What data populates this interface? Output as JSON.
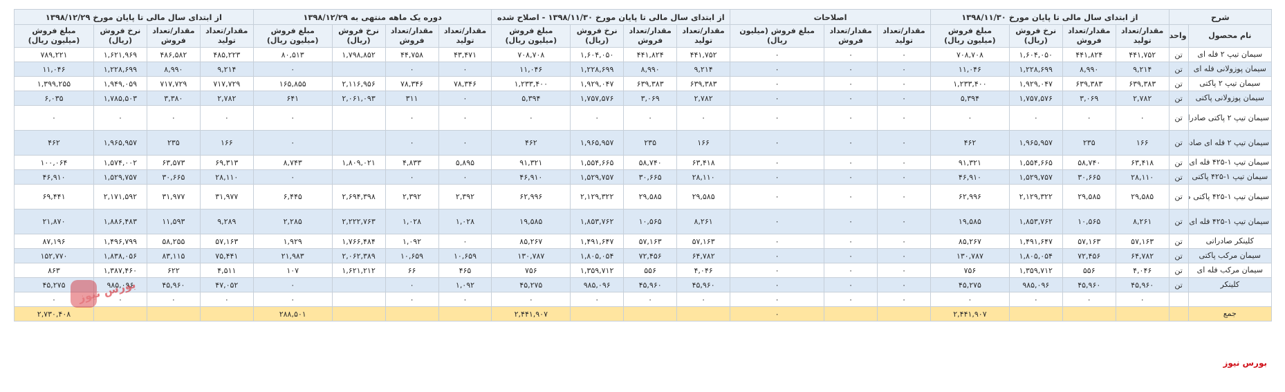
{
  "table": {
    "group_headers": [
      "شرح",
      "از ابتدای سال مالی تا پایان مورخ ۱۳۹۸/۱۱/۳۰",
      "اصلاحات",
      "از ابتدای سال مالی تا پایان مورخ ۱۳۹۸/۱۱/۳۰ - اصلاح شده",
      "دوره یک ماهه منتهی به ۱۳۹۸/۱۲/۲۹",
      "از ابتدای سال مالی تا پایان مورخ ۱۳۹۸/۱۲/۲۹"
    ],
    "sub_headers": [
      "نام محصول",
      "واحد",
      "مقدار/تعداد تولید",
      "مقدار/تعداد فروش",
      "نرخ فروش (ریال)",
      "مبلغ فروش (میلیون ریال)",
      "مقدار/تعداد تولید",
      "مقدار/تعداد فروش",
      "مبلغ فروش (میلیون ریال)",
      "مقدار/تعداد تولید",
      "مقدار/تعداد فروش",
      "نرخ فروش (ریال)",
      "مبلغ فروش (میلیون ریال)",
      "مقدار/تعداد تولید",
      "مقدار/تعداد فروش",
      "نرخ فروش (ریال)",
      "مبلغ فروش (میلیون ریال)",
      "مقدار/تعداد تولید",
      "مقدار/تعداد فروش",
      "نرخ فروش (ریال)",
      "مبلغ فروش (میلیون ریال)"
    ],
    "rows": [
      {
        "tall": false,
        "cells": [
          "سیمان تیپ ۲ فله ای",
          "تن",
          "۴۴۱,۷۵۲",
          "۴۴۱,۸۲۴",
          "۱,۶۰۴,۰۵۰",
          "۷۰۸,۷۰۸",
          "۰",
          "۰",
          "۰",
          "۴۴۱,۷۵۲",
          "۴۴۱,۸۲۴",
          "۱,۶۰۴,۰۵۰",
          "۷۰۸,۷۰۸",
          "۴۳,۴۷۱",
          "۴۴,۷۵۸",
          "۱,۷۹۸,۸۵۲",
          "۸۰,۵۱۳",
          "۴۸۵,۲۲۳",
          "۴۸۶,۵۸۲",
          "۱,۶۲۱,۹۶۹",
          "۷۸۹,۲۲۱"
        ]
      },
      {
        "tall": false,
        "cells": [
          "سیمان پوزولانی فله ای",
          "تن",
          "۹,۲۱۴",
          "۸,۹۹۰",
          "۱,۲۲۸,۶۹۹",
          "۱۱,۰۴۶",
          "۰",
          "۰",
          "۰",
          "۹,۲۱۴",
          "۸,۹۹۰",
          "۱,۲۲۸,۶۹۹",
          "۱۱,۰۴۶",
          "۰",
          "۰",
          "",
          "۰",
          "۹,۲۱۴",
          "۸,۹۹۰",
          "۱,۲۲۸,۶۹۹",
          "۱۱,۰۴۶"
        ]
      },
      {
        "tall": false,
        "cells": [
          "سیمان تیپ ۲ پاکتی",
          "تن",
          "۶۳۹,۳۸۳",
          "۶۳۹,۳۸۳",
          "۱,۹۲۹,۰۴۷",
          "۱,۲۳۳,۴۰۰",
          "۰",
          "۰",
          "۰",
          "۶۳۹,۳۸۳",
          "۶۳۹,۳۸۳",
          "۱,۹۲۹,۰۴۷",
          "۱,۲۳۳,۴۰۰",
          "۷۸,۳۴۶",
          "۷۸,۳۴۶",
          "۲,۱۱۶,۹۵۶",
          "۱۶۵,۸۵۵",
          "۷۱۷,۷۲۹",
          "۷۱۷,۷۲۹",
          "۱,۹۴۹,۰۵۹",
          "۱,۳۹۹,۲۵۵"
        ]
      },
      {
        "tall": false,
        "cells": [
          "سیمان پوزولانی پاکتی",
          "تن",
          "۲,۷۸۲",
          "۳,۰۶۹",
          "۱,۷۵۷,۵۷۶",
          "۵,۳۹۴",
          "۰",
          "۰",
          "۰",
          "۲,۷۸۲",
          "۳,۰۶۹",
          "۱,۷۵۷,۵۷۶",
          "۵,۳۹۴",
          "۰",
          "۳۱۱",
          "۲,۰۶۱,۰۹۳",
          "۶۴۱",
          "۲,۷۸۲",
          "۳,۳۸۰",
          "۱,۷۸۵,۵۰۳",
          "۶,۰۳۵"
        ]
      },
      {
        "tall": true,
        "cells": [
          "سیمان تیپ ۲ پاکتی صادراتی",
          "تن",
          "۰",
          "۰",
          "۰",
          "۰",
          "۰",
          "۰",
          "۰",
          "۰",
          "۰",
          "۰",
          "۰",
          "۰",
          "۰",
          "",
          "۰",
          "۰",
          "۰",
          "۰",
          "۰"
        ]
      },
      {
        "tall": true,
        "cells": [
          "سیمان تیپ ۲ فله ای صادراتی",
          "تن",
          "۱۶۶",
          "۲۳۵",
          "۱,۹۶۵,۹۵۷",
          "۴۶۲",
          "۰",
          "۰",
          "۰",
          "۱۶۶",
          "۲۳۵",
          "۱,۹۶۵,۹۵۷",
          "۴۶۲",
          "۰",
          "۰",
          "",
          "۰",
          "۱۶۶",
          "۲۳۵",
          "۱,۹۶۵,۹۵۷",
          "۴۶۲"
        ]
      },
      {
        "tall": false,
        "cells": [
          "سیمان تیپ ۱-۴۲۵ فله ای",
          "تن",
          "۶۳,۴۱۸",
          "۵۸,۷۴۰",
          "۱,۵۵۴,۶۶۵",
          "۹۱,۳۲۱",
          "۰",
          "۰",
          "۰",
          "۶۳,۴۱۸",
          "۵۸,۷۴۰",
          "۱,۵۵۴,۶۶۵",
          "۹۱,۳۲۱",
          "۵,۸۹۵",
          "۴,۸۳۳",
          "۱,۸۰۹,۰۲۱",
          "۸,۷۴۳",
          "۶۹,۳۱۳",
          "۶۳,۵۷۳",
          "۱,۵۷۴,۰۰۲",
          "۱۰۰,۰۶۴"
        ]
      },
      {
        "tall": false,
        "cells": [
          "سیمان تیپ ۱-۴۲۵ پاکتی",
          "تن",
          "۲۸,۱۱۰",
          "۳۰,۶۶۵",
          "۱,۵۲۹,۷۵۷",
          "۴۶,۹۱۰",
          "۰",
          "۰",
          "۰",
          "۲۸,۱۱۰",
          "۳۰,۶۶۵",
          "۱,۵۲۹,۷۵۷",
          "۴۶,۹۱۰",
          "۰",
          "۰",
          "",
          "۰",
          "۲۸,۱۱۰",
          "۳۰,۶۶۵",
          "۱,۵۲۹,۷۵۷",
          "۴۶,۹۱۰"
        ]
      },
      {
        "tall": true,
        "cells": [
          "سیمان تیپ ۱-۴۲۵ پاکتی صادراتی",
          "تن",
          "۲۹,۵۸۵",
          "۲۹,۵۸۵",
          "۲,۱۲۹,۳۲۲",
          "۶۲,۹۹۶",
          "۰",
          "۰",
          "۰",
          "۲۹,۵۸۵",
          "۲۹,۵۸۵",
          "۲,۱۲۹,۳۲۲",
          "۶۲,۹۹۶",
          "۲,۳۹۲",
          "۲,۳۹۲",
          "۲,۶۹۴,۳۹۸",
          "۶,۴۴۵",
          "۳۱,۹۷۷",
          "۳۱,۹۷۷",
          "۲,۱۷۱,۵۹۲",
          "۶۹,۴۴۱"
        ]
      },
      {
        "tall": true,
        "cells": [
          "سیمان تیپ ۱-۴۲۵ فله ای صادراتی",
          "تن",
          "۸,۲۶۱",
          "۱۰,۵۶۵",
          "۱,۸۵۳,۷۶۲",
          "۱۹,۵۸۵",
          "۰",
          "۰",
          "۰",
          "۸,۲۶۱",
          "۱۰,۵۶۵",
          "۱,۸۵۳,۷۶۲",
          "۱۹,۵۸۵",
          "۱,۰۲۸",
          "۱,۰۲۸",
          "۲,۲۲۲,۷۶۳",
          "۲,۲۸۵",
          "۹,۲۸۹",
          "۱۱,۵۹۳",
          "۱,۸۸۶,۴۸۳",
          "۲۱,۸۷۰"
        ]
      },
      {
        "tall": false,
        "cells": [
          "کلینکر صادراتی",
          "تن",
          "۵۷,۱۶۳",
          "۵۷,۱۶۳",
          "۱,۴۹۱,۶۴۷",
          "۸۵,۲۶۷",
          "۰",
          "۰",
          "۰",
          "۵۷,۱۶۳",
          "۵۷,۱۶۳",
          "۱,۴۹۱,۶۴۷",
          "۸۵,۲۶۷",
          "۰",
          "۱,۰۹۲",
          "۱,۷۶۶,۴۸۴",
          "۱,۹۲۹",
          "۵۷,۱۶۳",
          "۵۸,۲۵۵",
          "۱,۴۹۶,۷۹۹",
          "۸۷,۱۹۶"
        ]
      },
      {
        "tall": false,
        "cells": [
          "سیمان مرکب پاکتی",
          "تن",
          "۶۴,۷۸۲",
          "۷۲,۴۵۶",
          "۱,۸۰۵,۰۵۴",
          "۱۳۰,۷۸۷",
          "۰",
          "۰",
          "۰",
          "۶۴,۷۸۲",
          "۷۲,۴۵۶",
          "۱,۸۰۵,۰۵۴",
          "۱۳۰,۷۸۷",
          "۱۰,۶۵۹",
          "۱۰,۶۵۹",
          "۲,۰۶۲,۳۸۹",
          "۲۱,۹۸۳",
          "۷۵,۴۴۱",
          "۸۳,۱۱۵",
          "۱,۸۳۸,۰۵۶",
          "۱۵۲,۷۷۰"
        ]
      },
      {
        "tall": false,
        "cells": [
          "سیمان مرکب فله ای",
          "تن",
          "۴,۰۴۶",
          "۵۵۶",
          "۱,۳۵۹,۷۱۲",
          "۷۵۶",
          "۰",
          "۰",
          "۰",
          "۴,۰۴۶",
          "۵۵۶",
          "۱,۳۵۹,۷۱۲",
          "۷۵۶",
          "۴۶۵",
          "۶۶",
          "۱,۶۲۱,۲۱۲",
          "۱۰۷",
          "۴,۵۱۱",
          "۶۲۲",
          "۱,۳۸۷,۴۶۰",
          "۸۶۳"
        ]
      },
      {
        "tall": false,
        "cells": [
          "کلینکر",
          "تن",
          "۴۵,۹۶۰",
          "۴۵,۹۶۰",
          "۹۸۵,۰۹۶",
          "۴۵,۲۷۵",
          "۰",
          "۰",
          "۰",
          "۴۵,۹۶۰",
          "۴۵,۹۶۰",
          "۹۸۵,۰۹۶",
          "۴۵,۲۷۵",
          "۱,۰۹۲",
          "۰",
          "",
          "۰",
          "۴۷,۰۵۲",
          "۴۵,۹۶۰",
          "۹۸۵,۰۹۶",
          "۴۵,۲۷۵"
        ]
      },
      {
        "tall": false,
        "cells": [
          "",
          "",
          "۰",
          "۰",
          "۰",
          "۰",
          "۰",
          "۰",
          "۰",
          "۰",
          "۰",
          "۰",
          "۰",
          "۰",
          "۰",
          "",
          "۰",
          "۰",
          "۰",
          "۰",
          "۰"
        ]
      }
    ],
    "total": {
      "label": "جمع",
      "cells": [
        "",
        "",
        "",
        "",
        "۲,۴۴۱,۹۰۷",
        "",
        "",
        "۰",
        "",
        "",
        "",
        "۲,۴۴۱,۹۰۷",
        "",
        "",
        "",
        "۲۸۸,۵۰۱",
        "",
        "",
        "",
        "۲,۷۳۰,۴۰۸"
      ]
    }
  },
  "brand": "بورس نیوز",
  "watermark": {
    "text": "بورس نیوز",
    "color": "#d0121b"
  }
}
